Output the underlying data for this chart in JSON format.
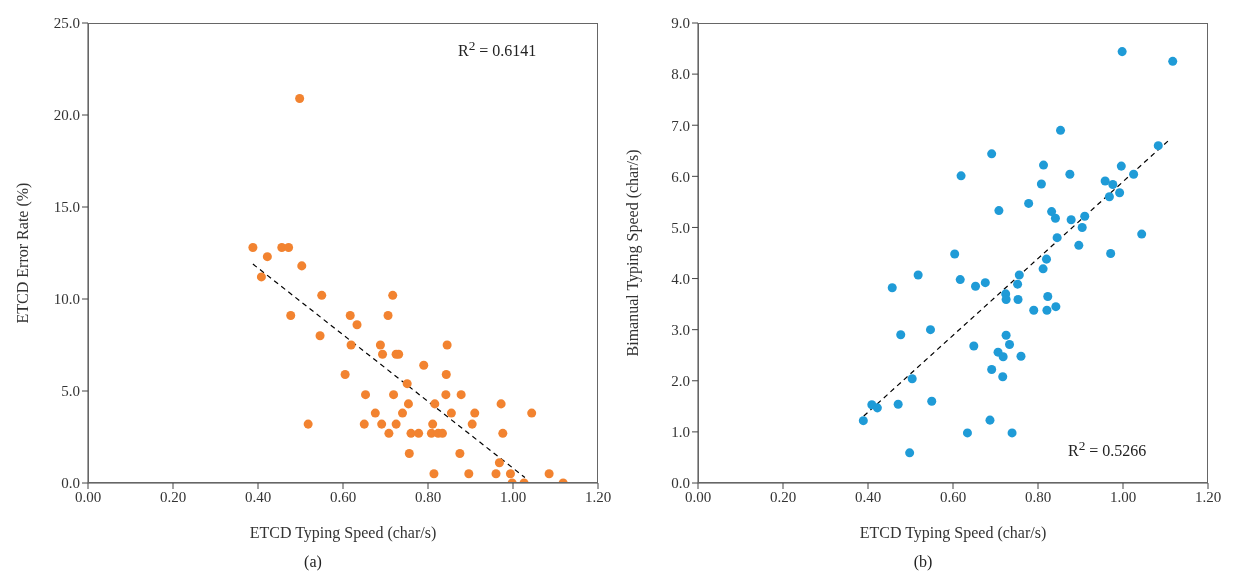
{
  "chart_data": [
    {
      "type": "scatter",
      "xlabel": "ETCD Typing Speed (char/s)",
      "ylabel": "ETCD Error Rate (%)",
      "xlim": [
        0,
        1.2
      ],
      "xticks": [
        {
          "value": 0,
          "label": "0.00"
        },
        {
          "value": 0.2,
          "label": "0.20"
        },
        {
          "value": 0.4,
          "label": "0.40"
        },
        {
          "value": 0.6,
          "label": "0.60"
        },
        {
          "value": 0.8,
          "label": "0.80"
        },
        {
          "value": 1,
          "label": "1.00"
        },
        {
          "value": 1.2,
          "label": "1.20"
        }
      ],
      "ylim": [
        0,
        25
      ],
      "yticks": [
        {
          "value": 0,
          "label": "0.0"
        },
        {
          "value": 5,
          "label": "5.0"
        },
        {
          "value": 10,
          "label": "10.0"
        },
        {
          "value": 15,
          "label": "15.0"
        },
        {
          "value": 20,
          "label": "20.0"
        },
        {
          "value": 25,
          "label": "25.0"
        }
      ],
      "grid": false,
      "annotations": [
        "R$^{2}$ = 0.6141",
        "(a)"
      ],
      "series": [
        {
          "marker": "circle",
          "color": "#f28330",
          "x": [
            0.388,
            0.422,
            0.456,
            0.472,
            0.503,
            0.408,
            0.498,
            0.55,
            0.717,
            0.477,
            0.617,
            0.706,
            0.633,
            0.546,
            0.619,
            0.688,
            0.845,
            0.693,
            0.725,
            0.731,
            0.79,
            0.605,
            0.843,
            0.751,
            0.653,
            0.719,
            0.842,
            0.878,
            0.754,
            0.816,
            0.972,
            0.676,
            0.74,
            0.855,
            0.91,
            1.044,
            0.518,
            0.65,
            0.691,
            0.725,
            0.811,
            0.904,
            0.708,
            0.76,
            0.778,
            0.808,
            0.824,
            0.834,
            0.976,
            0.756,
            0.875,
            0.968,
            0.814,
            0.896,
            0.96,
            0.994,
            1.085,
            0.998,
            1.026,
            1.118
          ],
          "values": [
            12.8,
            12.3,
            12.8,
            12.8,
            11.8,
            11.2,
            20.9,
            10.2,
            10.2,
            9.1,
            9.1,
            9.1,
            8.6,
            8.0,
            7.5,
            7.5,
            7.5,
            7.0,
            7.0,
            7.0,
            6.4,
            5.9,
            5.9,
            5.4,
            4.8,
            4.8,
            4.8,
            4.8,
            4.3,
            4.3,
            4.3,
            3.8,
            3.8,
            3.8,
            3.8,
            3.8,
            3.2,
            3.2,
            3.2,
            3.2,
            3.2,
            3.2,
            2.7,
            2.7,
            2.7,
            2.7,
            2.7,
            2.7,
            2.7,
            1.6,
            1.6,
            1.1,
            0.5,
            0.5,
            0.5,
            0.5,
            0.5,
            0,
            0,
            0
          ]
        },
        {
          "type": "line",
          "color": "#000000",
          "line_style": "dashed",
          "x": [
            0.388,
            1.028
          ],
          "values": [
            11.9,
            0.3
          ]
        }
      ]
    },
    {
      "type": "scatter",
      "xlabel": "ETCD Typing Speed (char/s)",
      "ylabel": "Bimanual Typing Speed (char/s)",
      "xlim": [
        0,
        1.2
      ],
      "xticks": [
        {
          "value": 0,
          "label": "0.00"
        },
        {
          "value": 0.2,
          "label": "0.20"
        },
        {
          "value": 0.4,
          "label": "0.40"
        },
        {
          "value": 0.6,
          "label": "0.60"
        },
        {
          "value": 0.8,
          "label": "0.80"
        },
        {
          "value": 1,
          "label": "1.00"
        },
        {
          "value": 1.2,
          "label": "1.20"
        }
      ],
      "ylim": [
        0,
        9
      ],
      "yticks": [
        {
          "value": 0,
          "label": "0.0"
        },
        {
          "value": 1,
          "label": "1.0"
        },
        {
          "value": 2,
          "label": "2.0"
        },
        {
          "value": 3,
          "label": "3.0"
        },
        {
          "value": 4,
          "label": "4.0"
        },
        {
          "value": 5,
          "label": "5.0"
        },
        {
          "value": 6,
          "label": "6.0"
        },
        {
          "value": 7,
          "label": "7.0"
        },
        {
          "value": 8,
          "label": "8.0"
        },
        {
          "value": 9,
          "label": "9.0"
        }
      ],
      "grid": false,
      "annotations": [
        "R$^{2}$ = 0.5266",
        "(b)"
      ],
      "series": [
        {
          "marker": "circle",
          "color": "#1f9bd7",
          "x": [
            0.691,
            0.619,
            0.708,
            0.778,
            0.808,
            0.604,
            0.518,
            0.457,
            0.617,
            0.653,
            0.676,
            0.756,
            0.752,
            0.724,
            0.725,
            0.753,
            0.79,
            0.477,
            0.547,
            0.649,
            0.725,
            0.733,
            0.706,
            0.718,
            0.76,
            0.691,
            0.717,
            0.504,
            0.389,
            0.409,
            0.422,
            0.471,
            0.55,
            0.687,
            0.634,
            0.739,
            0.498,
            0.998,
            1.117,
            0.853,
            1.083,
            0.813,
            0.996,
            0.875,
            1.025,
            0.958,
            0.976,
            0.992,
            0.968,
            0.832,
            0.841,
            0.878,
            0.91,
            0.904,
            0.845,
            0.896,
            1.044,
            0.971,
            0.82,
            0.812,
            0.823,
            0.821,
            0.842
          ],
          "values": [
            6.44,
            6.01,
            5.33,
            5.47,
            5.85,
            4.48,
            4.07,
            3.82,
            3.98,
            3.85,
            3.92,
            4.07,
            3.89,
            3.7,
            3.59,
            3.59,
            3.38,
            2.9,
            3.0,
            2.68,
            2.89,
            2.71,
            2.56,
            2.47,
            2.48,
            2.22,
            2.08,
            2.04,
            1.22,
            1.53,
            1.47,
            1.54,
            1.6,
            1.23,
            0.98,
            0.98,
            0.59,
            8.44,
            8.25,
            6.9,
            6.6,
            6.22,
            6.2,
            6.04,
            6.04,
            5.91,
            5.84,
            5.68,
            5.6,
            5.31,
            5.18,
            5.15,
            5.22,
            5.0,
            4.8,
            4.65,
            4.87,
            4.49,
            4.38,
            4.19,
            3.65,
            3.38,
            3.45
          ]
        },
        {
          "type": "line",
          "color": "#000000",
          "line_style": "dashed",
          "x": [
            0.39,
            1.111
          ],
          "values": [
            1.31,
            6.73
          ]
        }
      ]
    }
  ]
}
